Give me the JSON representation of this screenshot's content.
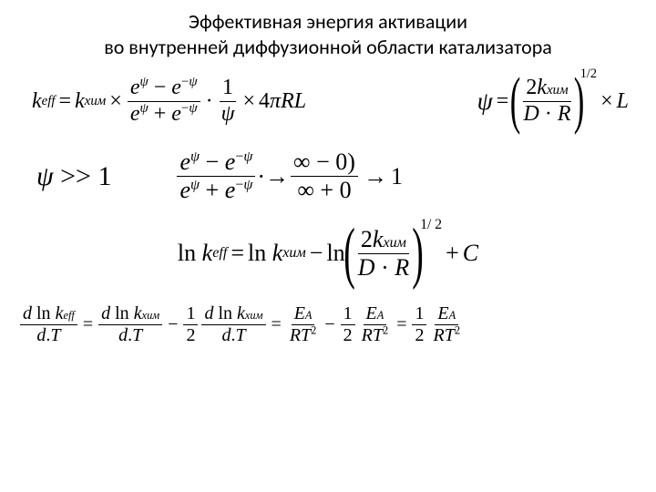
{
  "title": {
    "line1": "Эффективная энергия активации",
    "line2": "во внутренней диффузионной области  катализатора"
  },
  "symbols": {
    "k": "k",
    "eff": "eff",
    "khim": "хим",
    "psi": "ψ",
    "e": "e",
    "pi": "π",
    "R": "R",
    "L": "L",
    "D": "D",
    "inf": "∞",
    "one": "1",
    "two": "2",
    "four": "4",
    "zero": "0",
    "half": "1/2",
    "halfexp": "1/ 2",
    "gtgt": ">>",
    "ln": "ln",
    "C": "C",
    "d": "d",
    "T": "T",
    "E": "E",
    "A": "A",
    "times": "×",
    "eq": "=",
    "minus": "−",
    "plus": "+",
    "dot": "·",
    "arrow": "→",
    "sup2": "2"
  },
  "style": {
    "bg": "#ffffff",
    "fg": "#000000",
    "title_font": "Calibri",
    "math_font": "Times New Roman",
    "title_size": 22,
    "eq_size": 24
  }
}
